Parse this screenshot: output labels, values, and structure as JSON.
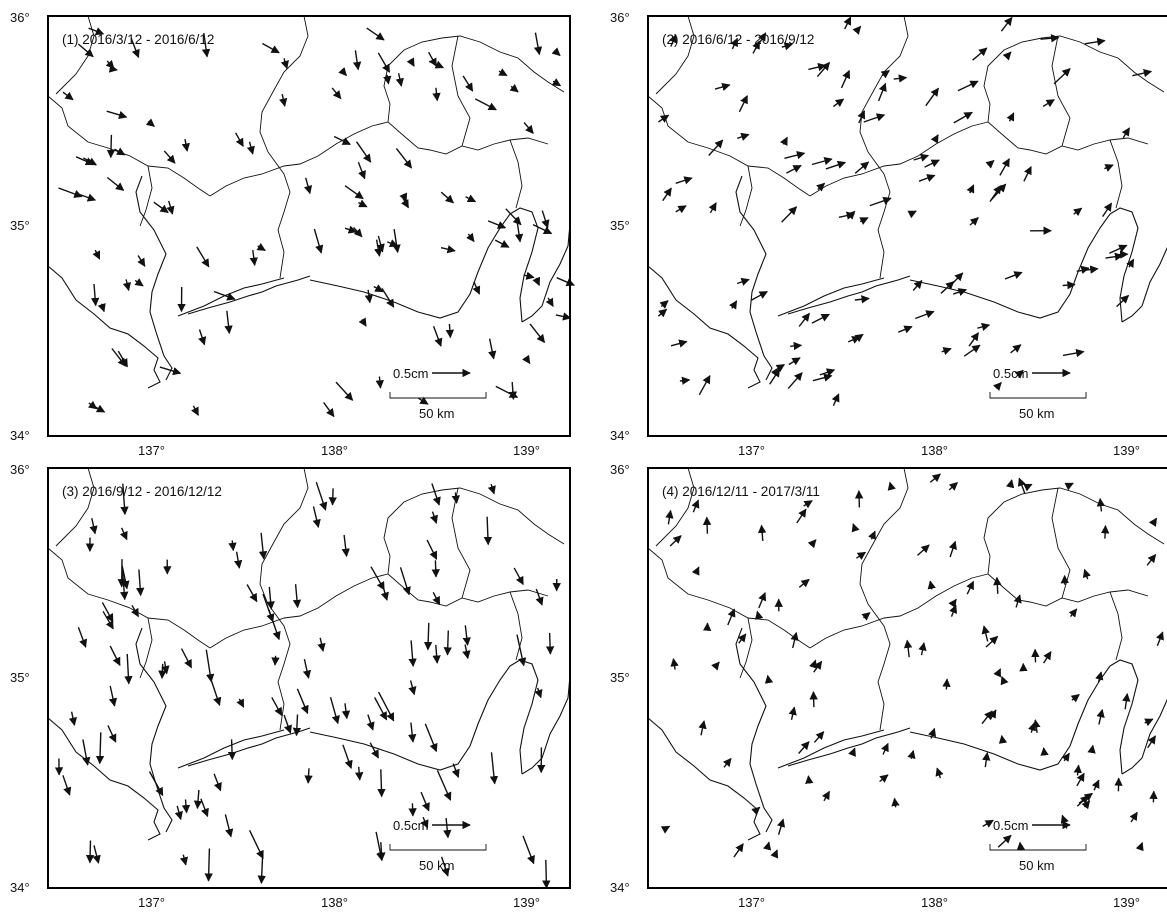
{
  "panels": [
    {
      "title": "(1) 2016/3/12 -  2016/6/12"
    },
    {
      "title": "(2) 2016/6/12 -  2016/9/12"
    },
    {
      "title": "(3) 2016/9/12 -  2016/12/12"
    },
    {
      "title": "(4) 2016/12/11 -  2017/3/11"
    }
  ],
  "lat_labels": [
    "36°",
    "35°",
    "34°"
  ],
  "lon_labels": [
    "137°",
    "138°",
    "139°"
  ],
  "scale": {
    "vector_label": "0.5cm",
    "distance_label": "50 km"
  }
}
